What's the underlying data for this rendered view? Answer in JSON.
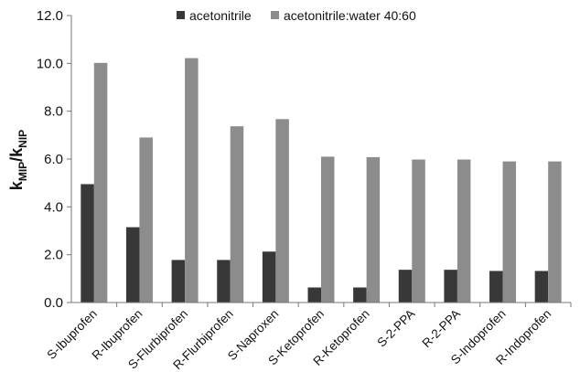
{
  "chart_data": {
    "type": "bar",
    "categories": [
      "S-Ibuprofen",
      "R-Ibuprofen",
      "S-Flurbiprofen",
      "R-Flurbiprofen",
      "S-Naproxen",
      "S-Ketoprofen",
      "R-Ketoprofen",
      "S-2-PPA",
      "R-2-PPA",
      "S-Indoprofen",
      "R-Indoprofen"
    ],
    "series": [
      {
        "name": "acetonitrile",
        "color": "#383838",
        "values": [
          4.95,
          3.15,
          1.78,
          1.78,
          2.13,
          0.63,
          0.63,
          1.37,
          1.37,
          1.32,
          1.32
        ]
      },
      {
        "name": "acetonitrile:water 40:60",
        "color": "#8c8c8c",
        "values": [
          10.02,
          6.9,
          10.22,
          7.37,
          7.67,
          6.1,
          6.08,
          5.98,
          5.98,
          5.9,
          5.9
        ]
      }
    ],
    "ylabel": {
      "main": "k",
      "sub1": "MIP",
      "sep": "/k",
      "sub2": "NIP"
    },
    "ylim": [
      0,
      12
    ],
    "yticks": [
      "0.0",
      "2.0",
      "4.0",
      "6.0",
      "8.0",
      "10.0",
      "12.0"
    ],
    "ytick_values": [
      0,
      2,
      4,
      6,
      8,
      10,
      12
    ],
    "legend_position": "top",
    "grid": false
  }
}
